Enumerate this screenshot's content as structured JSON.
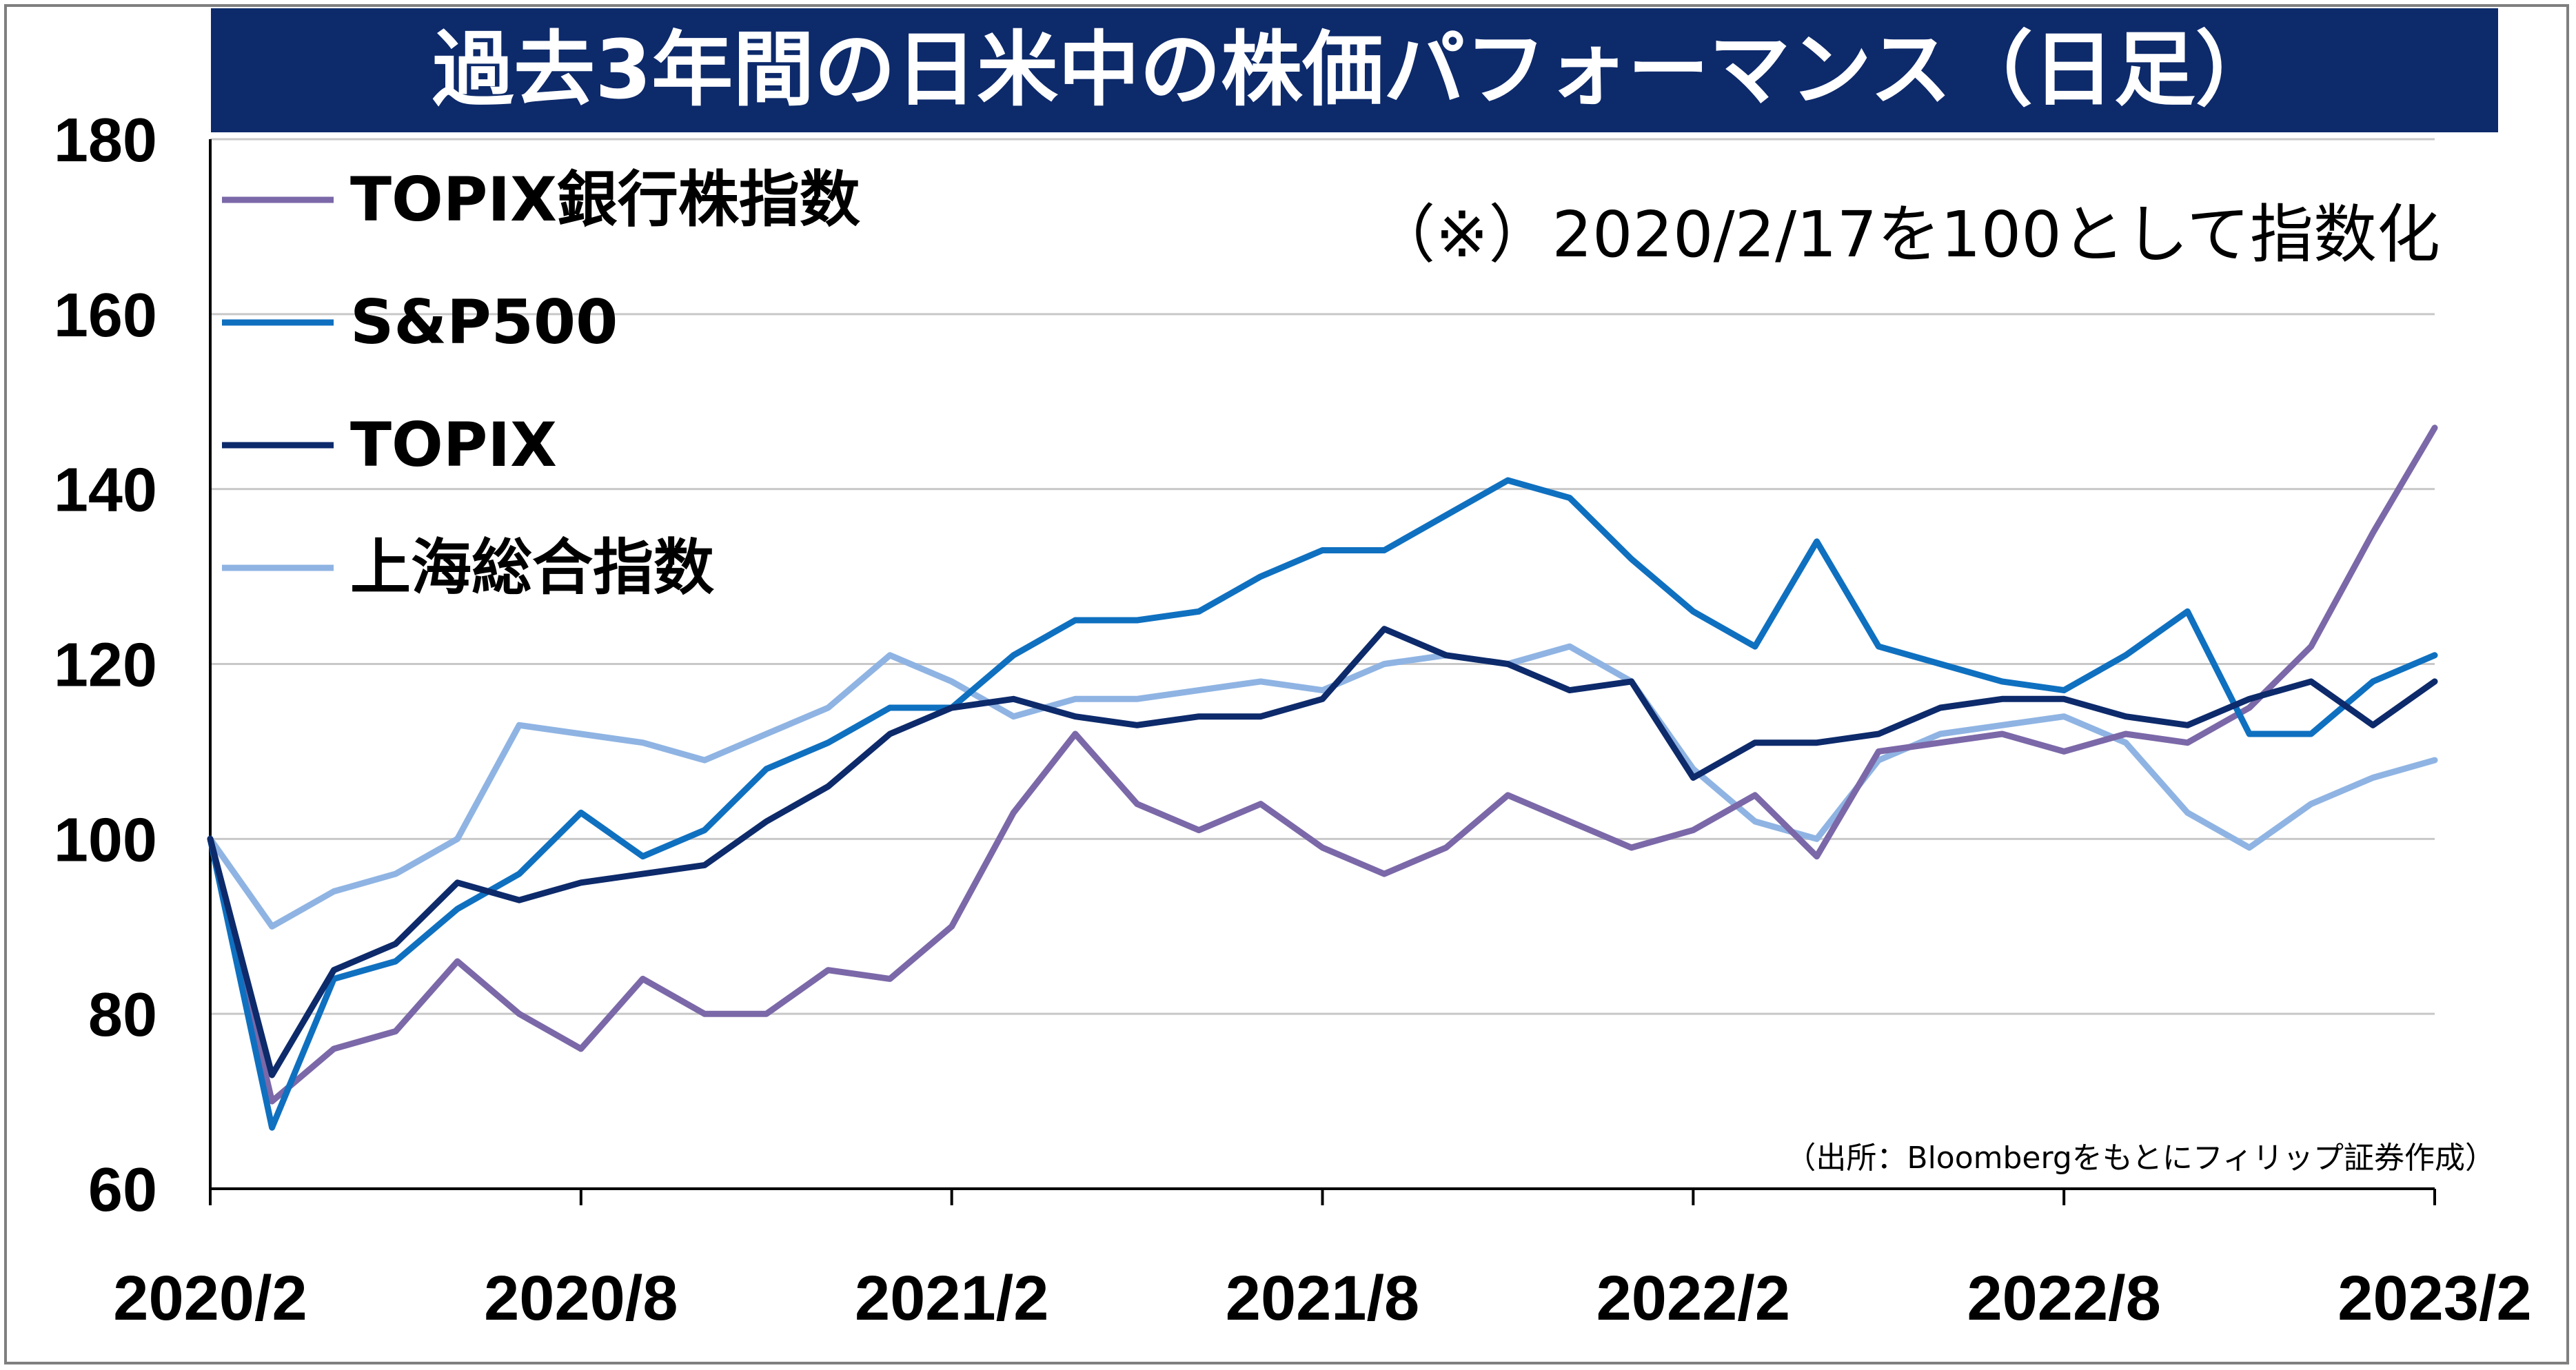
{
  "title": "過去3年間の日米中の株価パフォーマンス（日足）",
  "note": "（※）2020/2/17を100として指数化",
  "source": "（出所：Bloombergをもとにフィリップ証券作成）",
  "chart_data": {
    "type": "line",
    "title": "過去3年間の日米中の株価パフォーマンス（日足）",
    "xlabel": "",
    "ylabel": "",
    "ylim": [
      60,
      180
    ],
    "yticks": [
      60,
      80,
      100,
      120,
      140,
      160,
      180
    ],
    "xlim": [
      "2020/2",
      "2023/2"
    ],
    "xticks": [
      "2020/2",
      "2020/8",
      "2021/2",
      "2021/8",
      "2022/2",
      "2022/8",
      "2023/2"
    ],
    "grid": "horizontal",
    "legend_position": "top-left",
    "x": [
      "2020/2",
      "2020/3",
      "2020/4",
      "2020/5",
      "2020/6",
      "2020/7",
      "2020/8",
      "2020/9",
      "2020/10",
      "2020/11",
      "2020/12",
      "2021/1",
      "2021/2",
      "2021/3",
      "2021/4",
      "2021/5",
      "2021/6",
      "2021/7",
      "2021/8",
      "2021/9",
      "2021/10",
      "2021/11",
      "2021/12",
      "2022/1",
      "2022/2",
      "2022/3",
      "2022/4",
      "2022/5",
      "2022/6",
      "2022/7",
      "2022/8",
      "2022/9",
      "2022/10",
      "2022/11",
      "2022/12",
      "2023/1",
      "2023/2"
    ],
    "series": [
      {
        "name": "TOPIX銀行株指数",
        "color": "#7b68a8",
        "values": [
          100,
          70,
          76,
          78,
          86,
          80,
          76,
          84,
          80,
          80,
          85,
          84,
          90,
          103,
          112,
          104,
          101,
          104,
          99,
          96,
          99,
          105,
          102,
          99,
          101,
          105,
          98,
          110,
          111,
          112,
          110,
          112,
          111,
          115,
          122,
          135,
          147
        ]
      },
      {
        "name": "S&P500",
        "color": "#0f70c0",
        "values": [
          100,
          67,
          84,
          86,
          92,
          96,
          103,
          98,
          101,
          108,
          111,
          115,
          115,
          121,
          125,
          125,
          126,
          130,
          133,
          133,
          137,
          141,
          139,
          132,
          126,
          122,
          134,
          122,
          120,
          118,
          117,
          121,
          126,
          112,
          112,
          118,
          121
        ]
      },
      {
        "name": "TOPIX",
        "color": "#0d2a6b",
        "values": [
          100,
          73,
          85,
          88,
          95,
          93,
          95,
          96,
          97,
          102,
          106,
          112,
          115,
          116,
          114,
          113,
          114,
          114,
          116,
          124,
          121,
          120,
          117,
          118,
          107,
          111,
          111,
          112,
          115,
          116,
          116,
          114,
          113,
          116,
          118,
          113,
          118
        ]
      },
      {
        "name": "上海総合指数",
        "color": "#8fb4e3",
        "values": [
          100,
          90,
          94,
          96,
          100,
          113,
          112,
          111,
          109,
          112,
          115,
          121,
          118,
          114,
          116,
          116,
          117,
          118,
          117,
          120,
          121,
          120,
          122,
          118,
          108,
          102,
          100,
          109,
          112,
          113,
          114,
          111,
          103,
          99,
          104,
          107,
          109
        ]
      }
    ]
  }
}
